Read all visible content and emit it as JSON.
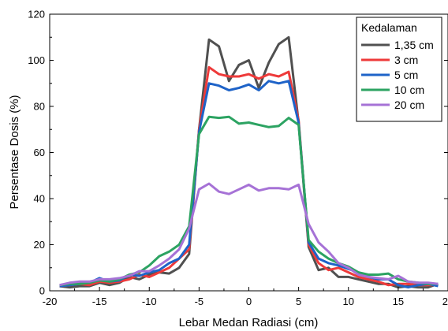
{
  "chart_data": {
    "type": "line",
    "xlabel": "Lebar Medan Radiasi (cm)",
    "ylabel": "Persentase Dosis (%)",
    "xlim": [
      -20,
      20
    ],
    "ylim": [
      0,
      120
    ],
    "xticks": [
      -20,
      -15,
      -10,
      -5,
      0,
      5,
      10,
      15,
      20
    ],
    "xtick_labels": [
      "-20",
      "-15",
      "-10",
      "-5",
      "0",
      "5",
      "10",
      "15",
      "20"
    ],
    "yticks": [
      0,
      20,
      40,
      60,
      80,
      100,
      120
    ],
    "ytick_labels": [
      "0",
      "20",
      "40",
      "60",
      "80",
      "100",
      "120"
    ],
    "grid": false,
    "legend_title": "Kedalaman",
    "legend_position": "top-right",
    "x": [
      -19,
      -18,
      -17,
      -16,
      -15,
      -14,
      -13,
      -12,
      -11,
      -10,
      -9,
      -8,
      -7,
      -6,
      -5,
      -4,
      -3,
      -2,
      -1,
      0,
      1,
      2,
      3,
      4,
      5,
      6,
      7,
      8,
      9,
      10,
      11,
      12,
      13,
      14,
      15,
      16,
      17,
      18,
      19
    ],
    "series": [
      {
        "name": "1,35 cm",
        "color": "#505050",
        "values": [
          2,
          1.5,
          2,
          2,
          3.5,
          2.5,
          3.5,
          6,
          5,
          7,
          8,
          7.5,
          10,
          16,
          70,
          109,
          106,
          91,
          98,
          100,
          88,
          99,
          107,
          110,
          73,
          19,
          9,
          10,
          6,
          6,
          5,
          4,
          3,
          3,
          1.5,
          2,
          1.5,
          1.5,
          3
        ]
      },
      {
        "name": "3 cm",
        "color": "#ee3a3a",
        "values": [
          2,
          2.5,
          3,
          2.5,
          4,
          3.5,
          4,
          5,
          7,
          6,
          8,
          10,
          14,
          18,
          70,
          97,
          94,
          93,
          93,
          94,
          92,
          94,
          93,
          95,
          74,
          20,
          12,
          9,
          10,
          8,
          6,
          5,
          4,
          2.5,
          3,
          3,
          2.5,
          2.5,
          2.5
        ]
      },
      {
        "name": "5 cm",
        "color": "#1e63c8",
        "values": [
          2,
          2.5,
          3,
          3.5,
          5.5,
          4,
          4.5,
          7,
          6.5,
          8,
          9,
          12,
          14,
          20,
          69,
          90,
          89,
          87,
          88,
          89.5,
          87,
          91,
          90,
          91,
          73,
          21,
          14,
          12,
          11,
          9.5,
          8,
          6,
          5,
          5,
          2.5,
          1.5,
          2.5,
          3,
          2
        ]
      },
      {
        "name": "10 cm",
        "color": "#2ca362",
        "values": [
          2.5,
          3,
          3,
          3.5,
          4.5,
          4,
          5,
          7,
          8,
          11,
          15,
          17,
          20,
          28,
          68,
          75.5,
          75,
          75.5,
          72.5,
          73,
          72,
          71,
          71.5,
          75,
          72,
          22,
          17,
          14,
          12,
          10.5,
          8,
          7,
          7,
          7.5,
          5,
          4,
          3.5,
          3,
          3
        ]
      },
      {
        "name": "20 cm",
        "color": "#a672d6",
        "values": [
          2.5,
          3.5,
          4,
          4,
          5,
          5,
          5.5,
          6.5,
          8.5,
          8.5,
          11,
          14,
          18,
          27,
          44,
          46.5,
          43,
          42,
          44,
          46,
          43.5,
          44.5,
          44.5,
          44,
          46,
          29,
          21,
          17,
          12,
          10,
          7,
          6,
          5.5,
          5,
          6.5,
          4,
          3.5,
          3.5,
          3
        ]
      }
    ]
  }
}
